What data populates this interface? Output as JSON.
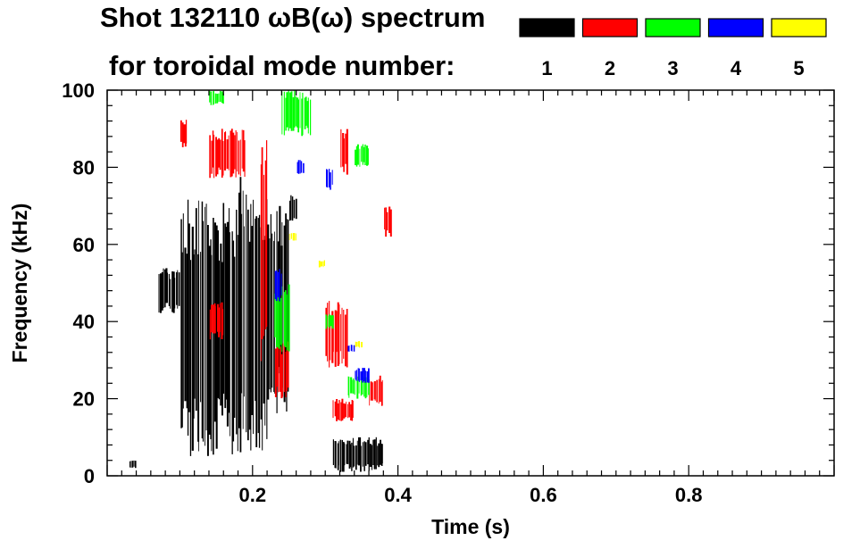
{
  "title": {
    "line1": "Shot 132110 ωB(ω) spectrum",
    "line2": "for toroidal mode number:"
  },
  "chart_data": {
    "type": "heatmap",
    "xlabel": "Time (s)",
    "ylabel": "Frequency (kHz)",
    "xlim": [
      0.0,
      1.0
    ],
    "ylim": [
      0,
      100
    ],
    "x_ticks": [
      0.2,
      0.4,
      0.6,
      0.8
    ],
    "x_tick_labels": [
      "0.2",
      "0.4",
      "0.6",
      "0.8"
    ],
    "y_ticks": [
      0,
      20,
      40,
      60,
      80,
      100
    ],
    "y_tick_labels": [
      "0",
      "20",
      "40",
      "60",
      "80",
      "100"
    ],
    "grid": false,
    "legend": {
      "placement": "top-right",
      "entries": [
        {
          "label": "1",
          "color": "#000000"
        },
        {
          "label": "2",
          "color": "#ff0000"
        },
        {
          "label": "3",
          "color": "#00ff00"
        },
        {
          "label": "4",
          "color": "#0000ff"
        },
        {
          "label": "5",
          "color": "#ffff00"
        }
      ]
    },
    "series": [
      {
        "name": "1",
        "color": "#000000",
        "regions": [
          {
            "t": [
              0.07,
              0.1
            ],
            "f": [
              42,
              54
            ]
          },
          {
            "t": [
              0.1,
              0.18
            ],
            "f": [
              5,
              72
            ]
          },
          {
            "t": [
              0.18,
              0.22
            ],
            "f": [
              5,
              78
            ]
          },
          {
            "t": [
              0.22,
              0.25
            ],
            "f": [
              15,
              70
            ]
          },
          {
            "t": [
              0.25,
              0.26
            ],
            "f": [
              66,
              73
            ]
          },
          {
            "t": [
              0.31,
              0.38
            ],
            "f": [
              1,
              10
            ]
          },
          {
            "t": [
              0.03,
              0.04
            ],
            "f": [
              2,
              4
            ]
          }
        ]
      },
      {
        "name": "2",
        "color": "#ff0000",
        "regions": [
          {
            "t": [
              0.14,
              0.19
            ],
            "f": [
              77,
              90
            ]
          },
          {
            "t": [
              0.1,
              0.11
            ],
            "f": [
              85,
              93
            ]
          },
          {
            "t": [
              0.21,
              0.22
            ],
            "f": [
              25,
              90
            ]
          },
          {
            "t": [
              0.23,
              0.25
            ],
            "f": [
              20,
              35
            ]
          },
          {
            "t": [
              0.3,
              0.33
            ],
            "f": [
              28,
              46
            ]
          },
          {
            "t": [
              0.31,
              0.34
            ],
            "f": [
              14,
              20
            ]
          },
          {
            "t": [
              0.32,
              0.33
            ],
            "f": [
              78,
              90
            ]
          },
          {
            "t": [
              0.36,
              0.38
            ],
            "f": [
              18,
              26
            ]
          },
          {
            "t": [
              0.38,
              0.39
            ],
            "f": [
              62,
              70
            ]
          },
          {
            "t": [
              0.14,
              0.16
            ],
            "f": [
              35,
              45
            ]
          }
        ]
      },
      {
        "name": "3",
        "color": "#00ff00",
        "regions": [
          {
            "t": [
              0.14,
              0.16
            ],
            "f": [
              96,
              100
            ]
          },
          {
            "t": [
              0.24,
              0.28
            ],
            "f": [
              88,
              100
            ]
          },
          {
            "t": [
              0.23,
              0.25
            ],
            "f": [
              32,
              50
            ]
          },
          {
            "t": [
              0.33,
              0.36
            ],
            "f": [
              20,
              26
            ]
          },
          {
            "t": [
              0.34,
              0.36
            ],
            "f": [
              80,
              86
            ]
          },
          {
            "t": [
              0.3,
              0.31
            ],
            "f": [
              38,
              42
            ]
          }
        ]
      },
      {
        "name": "4",
        "color": "#0000ff",
        "regions": [
          {
            "t": [
              0.23,
              0.24
            ],
            "f": [
              45,
              54
            ]
          },
          {
            "t": [
              0.26,
              0.27
            ],
            "f": [
              78,
              82
            ]
          },
          {
            "t": [
              0.3,
              0.31
            ],
            "f": [
              74,
              80
            ]
          },
          {
            "t": [
              0.34,
              0.36
            ],
            "f": [
              24,
              28
            ]
          },
          {
            "t": [
              0.33,
              0.34
            ],
            "f": [
              32,
              34
            ]
          }
        ]
      },
      {
        "name": "5",
        "color": "#ffff00",
        "regions": [
          {
            "t": [
              0.25,
              0.26
            ],
            "f": [
              61,
              63
            ]
          },
          {
            "t": [
              0.34,
              0.35
            ],
            "f": [
              33,
              35
            ]
          },
          {
            "t": [
              0.29,
              0.3
            ],
            "f": [
              54,
              56
            ]
          }
        ]
      }
    ]
  }
}
